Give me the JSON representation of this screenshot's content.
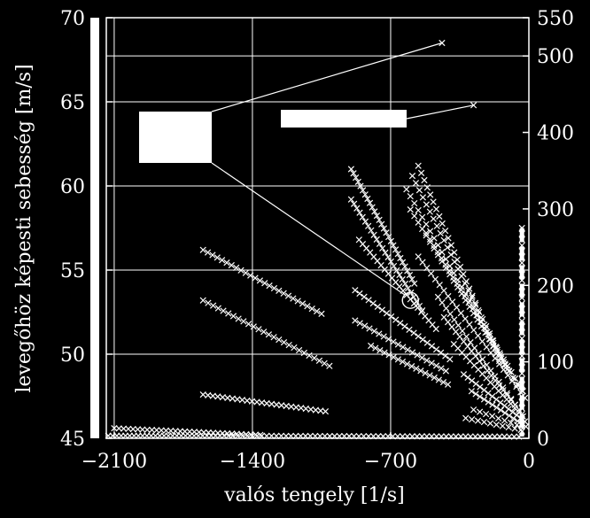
{
  "chart_data": {
    "type": "scatter",
    "title": "",
    "xlabel": "valós tengely [1/s]",
    "ylabel": "levegőhöz képesti sebesség [m/s]",
    "xlim": [
      -2140,
      0
    ],
    "ylim": [
      45,
      70
    ],
    "y2lim": [
      0,
      550
    ],
    "grid": true,
    "x_ticks": [
      {
        "value": -2100,
        "label": "−2100"
      },
      {
        "value": -1400,
        "label": "−1400"
      },
      {
        "value": -700,
        "label": "−700"
      },
      {
        "value": 0,
        "label": "0"
      }
    ],
    "y_ticks": [
      {
        "value": 45,
        "label": "45"
      },
      {
        "value": 50,
        "label": "50"
      },
      {
        "value": 55,
        "label": "55"
      },
      {
        "value": 60,
        "label": "60"
      },
      {
        "value": 65,
        "label": "65"
      },
      {
        "value": 70,
        "label": "70"
      }
    ],
    "y2_ticks": [
      {
        "value": 0,
        "label": "0"
      },
      {
        "value": 100,
        "label": "100"
      },
      {
        "value": 200,
        "label": "200"
      },
      {
        "value": 300,
        "label": "300"
      },
      {
        "value": 400,
        "label": "400"
      },
      {
        "value": 500,
        "label": "500"
      },
      {
        "value": 550,
        "label": "550"
      }
    ],
    "series": [
      {
        "x": [
          -1650,
          -1050
        ],
        "y": [
          56.2,
          52.4
        ],
        "n": 26
      },
      {
        "x": [
          -1650,
          -1010
        ],
        "y": [
          53.2,
          49.3
        ],
        "n": 26
      },
      {
        "x": [
          -1650,
          -1030
        ],
        "y": [
          47.6,
          46.6
        ],
        "n": 26
      },
      {
        "x": [
          -2100,
          -1360
        ],
        "y": [
          45.6,
          45.2
        ],
        "n": 32
      },
      {
        "x": [
          -900,
          -580
        ],
        "y": [
          61.0,
          54.2
        ],
        "n": 28
      },
      {
        "x": [
          -900,
          -540
        ],
        "y": [
          59.2,
          52.6
        ],
        "n": 26
      },
      {
        "x": [
          -860,
          -470
        ],
        "y": [
          56.8,
          51.5
        ],
        "n": 22
      },
      {
        "x": [
          -880,
          -400
        ],
        "y": [
          53.8,
          49.7
        ],
        "n": 22
      },
      {
        "x": [
          -880,
          -420
        ],
        "y": [
          52.0,
          49.0
        ],
        "n": 20
      },
      {
        "x": [
          -800,
          -410
        ],
        "y": [
          50.5,
          48.2
        ],
        "n": 18
      },
      {
        "x": [
          -560,
          -150
        ],
        "y": [
          61.2,
          49.6
        ],
        "n": 28
      },
      {
        "x": [
          -590,
          -110
        ],
        "y": [
          60.6,
          49.1
        ],
        "n": 28
      },
      {
        "x": [
          -620,
          -80
        ],
        "y": [
          59.8,
          48.6
        ],
        "n": 28
      },
      {
        "x": [
          -600,
          -60
        ],
        "y": [
          58.6,
          48.2
        ],
        "n": 28
      },
      {
        "x": [
          -520,
          -30
        ],
        "y": [
          57.2,
          47.8
        ],
        "n": 26
      },
      {
        "x": [
          -560,
          -20
        ],
        "y": [
          55.8,
          47.4
        ],
        "n": 26
      },
      {
        "x": [
          -460,
          -70
        ],
        "y": [
          53.4,
          47.0
        ],
        "n": 20
      },
      {
        "x": [
          -430,
          -50
        ],
        "y": [
          52.2,
          46.7
        ],
        "n": 20
      },
      {
        "x": [
          -380,
          -30
        ],
        "y": [
          50.6,
          46.3
        ],
        "n": 18
      },
      {
        "x": [
          -330,
          -20
        ],
        "y": [
          48.8,
          46.0
        ],
        "n": 16
      },
      {
        "x": [
          -290,
          -15
        ],
        "y": [
          47.8,
          45.7
        ],
        "n": 14
      },
      {
        "x": [
          -280,
          -60
        ],
        "y": [
          46.7,
          45.8
        ],
        "n": 8
      },
      {
        "x": [
          -320,
          -40
        ],
        "y": [
          46.2,
          45.5
        ],
        "n": 10
      },
      {
        "x": [
          -1500,
          -50
        ],
        "y": [
          45.15,
          45.1
        ],
        "n": 60
      },
      {
        "x": [
          -2130,
          -1500
        ],
        "y": [
          45.15,
          45.15
        ],
        "n": 30
      },
      {
        "x": [
          -35,
          -35
        ],
        "y": [
          57.5,
          45.4
        ],
        "n": 36
      }
    ],
    "highlight_point": {
      "x": -600,
      "y": 53.2
    },
    "zoom_markers": [
      {
        "x": -440,
        "y": 68.5
      },
      {
        "x": -280,
        "y": 64.8
      }
    ]
  }
}
